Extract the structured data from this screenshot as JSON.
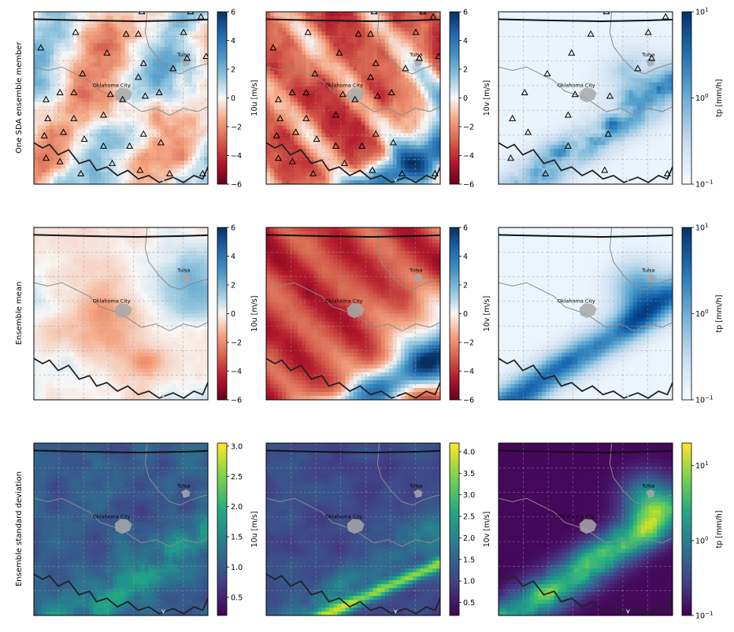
{
  "figure": {
    "row_labels": [
      "One SDA ensemble member",
      "Ensemble mean",
      "Ensemble standard deviation"
    ],
    "cities": [
      {
        "name": "Oklahoma City"
      },
      {
        "name": "Tulsa"
      }
    ]
  },
  "chart_data": [
    {
      "type": "heatmap",
      "row": 0,
      "col": 0,
      "variable": "10u",
      "colorbar_label": "10u [m/s]",
      "colormap": "RdBu",
      "scale": "linear",
      "clim": [
        -6,
        6
      ],
      "ticks": [
        "6",
        "4",
        "2",
        "0",
        "−2",
        "−4",
        "−6"
      ],
      "stations_shown": true
    },
    {
      "type": "heatmap",
      "row": 0,
      "col": 1,
      "variable": "10v",
      "colorbar_label": "10v [m/s]",
      "colormap": "RdBu",
      "scale": "linear",
      "clim": [
        -6,
        6
      ],
      "ticks": [
        "6",
        "4",
        "2",
        "0",
        "−2",
        "−4",
        "−6"
      ],
      "stations_shown": true
    },
    {
      "type": "heatmap",
      "row": 0,
      "col": 2,
      "variable": "tp",
      "colorbar_label": "tp [mm/h]",
      "colormap": "Blues",
      "scale": "log",
      "clim": [
        0.1,
        10
      ],
      "ticks": [
        "10^1",
        "10^0",
        "10^−1"
      ],
      "stations_shown": true
    },
    {
      "type": "heatmap",
      "row": 1,
      "col": 0,
      "variable": "10u",
      "colorbar_label": "10u [m/s]",
      "colormap": "RdBu",
      "scale": "linear",
      "clim": [
        -6,
        6
      ],
      "ticks": [
        "6",
        "4",
        "2",
        "0",
        "−2",
        "−4",
        "−6"
      ],
      "stations_shown": false
    },
    {
      "type": "heatmap",
      "row": 1,
      "col": 1,
      "variable": "10v",
      "colorbar_label": "10v [m/s]",
      "colormap": "RdBu",
      "scale": "linear",
      "clim": [
        -6,
        6
      ],
      "ticks": [
        "6",
        "4",
        "2",
        "0",
        "−2",
        "−4",
        "−6"
      ],
      "stations_shown": false
    },
    {
      "type": "heatmap",
      "row": 1,
      "col": 2,
      "variable": "tp",
      "colorbar_label": "tp [mm/h]",
      "colormap": "Blues",
      "scale": "log",
      "clim": [
        0.1,
        10
      ],
      "ticks": [
        "10^1",
        "10^0",
        "10^−1"
      ],
      "stations_shown": false
    },
    {
      "type": "heatmap",
      "row": 2,
      "col": 0,
      "variable": "10u",
      "colorbar_label": "10u [m/s]",
      "colormap": "viridis",
      "scale": "linear",
      "clim": [
        0.2,
        3.05
      ],
      "ticks": [
        "3.0",
        "2.5",
        "2.0",
        "1.5",
        "1.0",
        "0.5"
      ],
      "stations_shown": false
    },
    {
      "type": "heatmap",
      "row": 2,
      "col": 1,
      "variable": "10v",
      "colorbar_label": "10v [m/s]",
      "colormap": "viridis",
      "scale": "linear",
      "clim": [
        0.2,
        4.2
      ],
      "ticks": [
        "4.0",
        "3.5",
        "3.0",
        "2.5",
        "2.0",
        "1.5",
        "1.0",
        "0.5"
      ],
      "stations_shown": false
    },
    {
      "type": "heatmap",
      "row": 2,
      "col": 2,
      "variable": "tp",
      "colorbar_label": "tp [mm/h]",
      "colormap": "viridis",
      "scale": "log",
      "clim": [
        0.1,
        20
      ],
      "ticks": [
        "10^1",
        "10^0",
        "10^−1"
      ],
      "stations_shown": false
    }
  ]
}
